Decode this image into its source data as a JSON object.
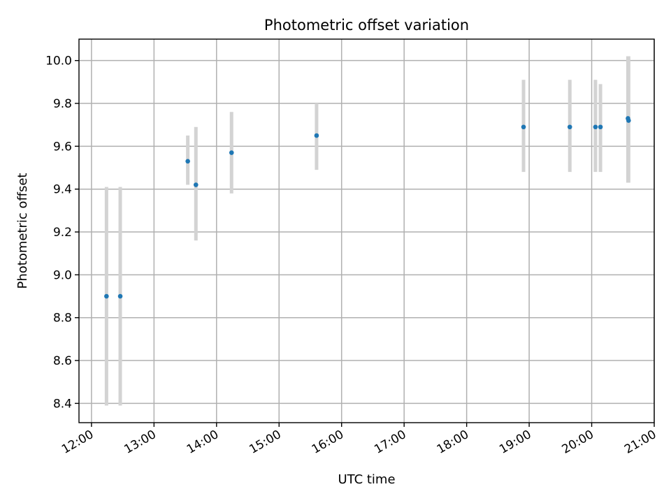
{
  "chart_data": {
    "type": "scatter",
    "title": "Photometric offset variation",
    "xlabel": "UTC time",
    "ylabel": "Photometric offset",
    "x_unit": "hours",
    "xlim": [
      11.8,
      21.0
    ],
    "ylim": [
      8.31,
      10.1
    ],
    "grid": true,
    "x_ticks": [
      {
        "value": 12,
        "label": "12:00"
      },
      {
        "value": 13,
        "label": "13:00"
      },
      {
        "value": 14,
        "label": "14:00"
      },
      {
        "value": 15,
        "label": "15:00"
      },
      {
        "value": 16,
        "label": "16:00"
      },
      {
        "value": 17,
        "label": "17:00"
      },
      {
        "value": 18,
        "label": "18:00"
      },
      {
        "value": 19,
        "label": "19:00"
      },
      {
        "value": 20,
        "label": "20:00"
      },
      {
        "value": 21,
        "label": "21:00"
      }
    ],
    "y_ticks": [
      {
        "value": 8.4,
        "label": "8.4"
      },
      {
        "value": 8.6,
        "label": "8.6"
      },
      {
        "value": 8.8,
        "label": "8.8"
      },
      {
        "value": 9.0,
        "label": "9.0"
      },
      {
        "value": 9.2,
        "label": "9.2"
      },
      {
        "value": 9.4,
        "label": "9.4"
      },
      {
        "value": 9.6,
        "label": "9.6"
      },
      {
        "value": 9.8,
        "label": "9.8"
      },
      {
        "value": 10.0,
        "label": "10.0"
      }
    ],
    "points": [
      {
        "x": 12.24,
        "y": 8.9,
        "ylow": 8.39,
        "yhigh": 9.41
      },
      {
        "x": 12.46,
        "y": 8.9,
        "ylow": 8.39,
        "yhigh": 9.41
      },
      {
        "x": 13.54,
        "y": 9.53,
        "ylow": 9.42,
        "yhigh": 9.65
      },
      {
        "x": 13.67,
        "y": 9.42,
        "ylow": 9.16,
        "yhigh": 9.69
      },
      {
        "x": 14.24,
        "y": 9.57,
        "ylow": 9.38,
        "yhigh": 9.76
      },
      {
        "x": 15.6,
        "y": 9.65,
        "ylow": 9.49,
        "yhigh": 9.8
      },
      {
        "x": 18.91,
        "y": 9.69,
        "ylow": 9.48,
        "yhigh": 9.91
      },
      {
        "x": 19.65,
        "y": 9.69,
        "ylow": 9.48,
        "yhigh": 9.91
      },
      {
        "x": 20.06,
        "y": 9.69,
        "ylow": 9.48,
        "yhigh": 9.91
      },
      {
        "x": 20.14,
        "y": 9.69,
        "ylow": 9.48,
        "yhigh": 9.89
      },
      {
        "x": 20.58,
        "y": 9.73,
        "ylow": 9.43,
        "yhigh": 10.02
      },
      {
        "x": 20.59,
        "y": 9.72,
        "ylow": 9.43,
        "yhigh": 10.02
      }
    ],
    "colors": {
      "marker": "#1f77b4",
      "errorbar": "#d3d3d3",
      "grid": "#b0b0b0",
      "axis": "#000000"
    }
  }
}
